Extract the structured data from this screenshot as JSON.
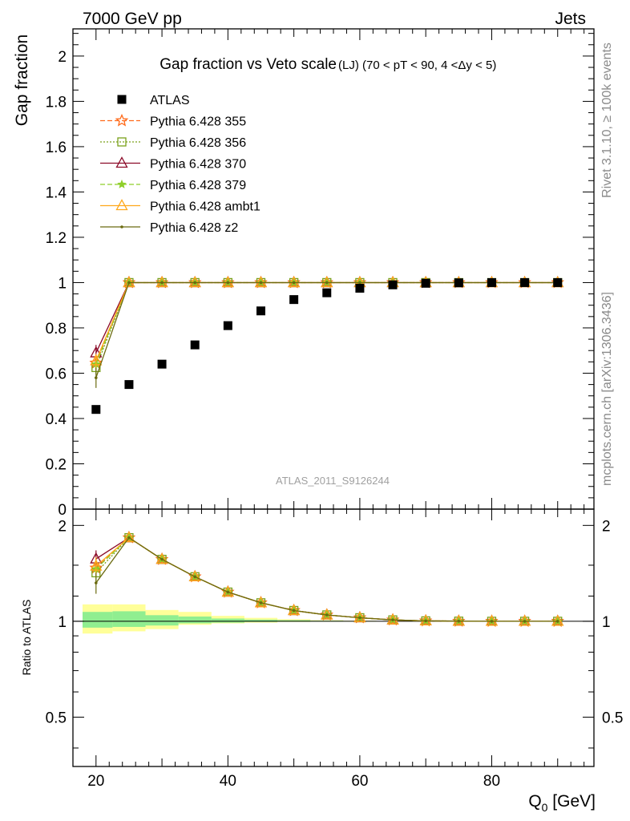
{
  "header": {
    "energy_label": "7000 GeV pp",
    "process_label": "Jets"
  },
  "side_text": {
    "rivet": "Rivet 3.1.10, ≥ 100k events",
    "mcplots": "mcplots.cern.ch [arXiv:1306.3436]"
  },
  "chart_data": [
    {
      "type": "scatter",
      "title": "Gap fraction vs Veto scale",
      "subtitle": "(LJ) (70 < pT <  90, 4 <Δy < 5)",
      "ylabel": "Gap fraction",
      "xlabel": "Q₀ [GeV]",
      "analysis_label": "ATLAS_2011_S9126244",
      "xlim": [
        16.5,
        95.5
      ],
      "ylim": [
        0,
        2.12
      ],
      "y_ticks": [
        "0",
        "0.2",
        "0.4",
        "0.6",
        "0.8",
        "1",
        "1.2",
        "1.4",
        "1.6",
        "1.8",
        "2"
      ],
      "x": [
        20,
        25,
        30,
        35,
        40,
        45,
        50,
        55,
        60,
        65,
        70,
        75,
        80,
        85,
        90
      ],
      "series": [
        {
          "name": "ATLAS",
          "color": "#000000",
          "marker": "square",
          "line": "none",
          "values": [
            0.44,
            0.55,
            0.64,
            0.725,
            0.81,
            0.875,
            0.925,
            0.955,
            0.975,
            0.99,
            0.997,
            0.999,
            1.0,
            1.0,
            1.0
          ]
        },
        {
          "name": "Pythia 6.428 355",
          "color": "#ff6a1a",
          "marker": "star",
          "line": "dashed",
          "values": [
            0.645,
            1,
            1,
            1,
            1,
            1,
            1,
            1,
            1,
            1,
            1,
            1,
            1,
            1,
            1
          ],
          "err0": 0.03
        },
        {
          "name": "Pythia 6.428 356",
          "color": "#7aa01a",
          "marker": "square-open",
          "line": "dotted",
          "values": [
            0.625,
            1,
            1,
            1,
            1,
            1,
            1,
            1,
            1,
            1,
            1,
            1,
            1,
            1,
            1
          ],
          "err0": 0.03
        },
        {
          "name": "Pythia 6.428 370",
          "color": "#8b0a28",
          "marker": "triangle-open",
          "line": "solid",
          "values": [
            0.69,
            1,
            1,
            1,
            1,
            1,
            1,
            1,
            1,
            1,
            1,
            1,
            1,
            1,
            1
          ],
          "err0": 0.035
        },
        {
          "name": "Pythia 6.428 379",
          "color": "#8fcf2a",
          "marker": "star-small",
          "line": "dashed",
          "values": [
            0.64,
            1,
            1,
            1,
            1,
            1,
            1,
            1,
            1,
            1,
            1,
            1,
            1,
            1,
            1
          ],
          "err0": 0.03
        },
        {
          "name": "Pythia 6.428 ambt1",
          "color": "#ffa81a",
          "marker": "triangle-open",
          "line": "solid",
          "values": [
            0.655,
            1,
            1,
            1,
            1,
            1,
            1,
            1,
            1,
            1,
            1,
            1,
            1,
            1,
            1
          ],
          "err0": 0.03
        },
        {
          "name": "Pythia 6.428 z2",
          "color": "#6b6b10",
          "marker": "dot",
          "line": "solid",
          "values": [
            0.58,
            1,
            1,
            1,
            1,
            1,
            1,
            1,
            1,
            1,
            1,
            1,
            1,
            1,
            1
          ],
          "err0": 0.045
        }
      ]
    },
    {
      "type": "line",
      "ylabel": "Ratio to ATLAS",
      "ylim": [
        0.35,
        2.25
      ],
      "y_ticks": [
        "0.5",
        "1",
        "2"
      ],
      "y_tick_values": [
        0.5,
        1,
        2
      ],
      "x_ticks": [
        "20",
        "40",
        "60",
        "80"
      ],
      "x_tick_values": [
        20,
        40,
        60,
        80
      ],
      "uncertainty_bands": {
        "edges": [
          17.5,
          22.5,
          27.5,
          32.5,
          37.5,
          42.5,
          47.5,
          52.5,
          57.5,
          62.5,
          95.5
        ],
        "yellow": [
          [
            0.915,
            1.13
          ],
          [
            0.93,
            1.13
          ],
          [
            0.945,
            1.085
          ],
          [
            0.975,
            1.07
          ],
          [
            0.985,
            1.04
          ],
          [
            0.99,
            1.025
          ],
          [
            0.995,
            1.015
          ],
          [
            0.998,
            1.008
          ],
          [
            0.999,
            1.004
          ],
          [
            0.999,
            1.002
          ]
        ],
        "green": [
          [
            0.955,
            1.07
          ],
          [
            0.96,
            1.075
          ],
          [
            0.97,
            1.045
          ],
          [
            0.985,
            1.035
          ],
          [
            0.99,
            1.02
          ],
          [
            0.995,
            1.012
          ],
          [
            0.997,
            1.008
          ],
          [
            0.999,
            1.004
          ],
          [
            0.999,
            1.002
          ],
          [
            1.0,
            1.001
          ]
        ]
      },
      "x": [
        20,
        25,
        30,
        35,
        40,
        45,
        50,
        55,
        60,
        65,
        70,
        75,
        80,
        85,
        90
      ],
      "series": [
        {
          "name": "Pythia 6.428 355",
          "values": [
            1.47,
            1.83,
            1.565,
            1.38,
            1.235,
            1.143,
            1.081,
            1.047,
            1.026,
            1.01,
            1.003,
            1.001,
            1.0,
            1.0,
            1.0
          ]
        },
        {
          "name": "Pythia 6.428 356",
          "values": [
            1.42,
            1.83,
            1.565,
            1.38,
            1.235,
            1.143,
            1.081,
            1.047,
            1.026,
            1.01,
            1.003,
            1.001,
            1.0,
            1.0,
            1.0
          ]
        },
        {
          "name": "Pythia 6.428 370",
          "values": [
            1.57,
            1.83,
            1.565,
            1.38,
            1.235,
            1.143,
            1.081,
            1.047,
            1.026,
            1.01,
            1.003,
            1.001,
            1.0,
            1.0,
            1.0
          ]
        },
        {
          "name": "Pythia 6.428 379",
          "values": [
            1.46,
            1.83,
            1.565,
            1.38,
            1.235,
            1.143,
            1.081,
            1.047,
            1.026,
            1.01,
            1.003,
            1.001,
            1.0,
            1.0,
            1.0
          ]
        },
        {
          "name": "Pythia 6.428 ambt1",
          "values": [
            1.49,
            1.83,
            1.565,
            1.38,
            1.235,
            1.143,
            1.081,
            1.047,
            1.026,
            1.01,
            1.003,
            1.001,
            1.0,
            1.0,
            1.0
          ]
        },
        {
          "name": "Pythia 6.428 z2",
          "values": [
            1.32,
            1.83,
            1.565,
            1.38,
            1.235,
            1.143,
            1.081,
            1.047,
            1.026,
            1.01,
            1.003,
            1.001,
            1.0,
            1.0,
            1.0
          ]
        }
      ]
    }
  ]
}
